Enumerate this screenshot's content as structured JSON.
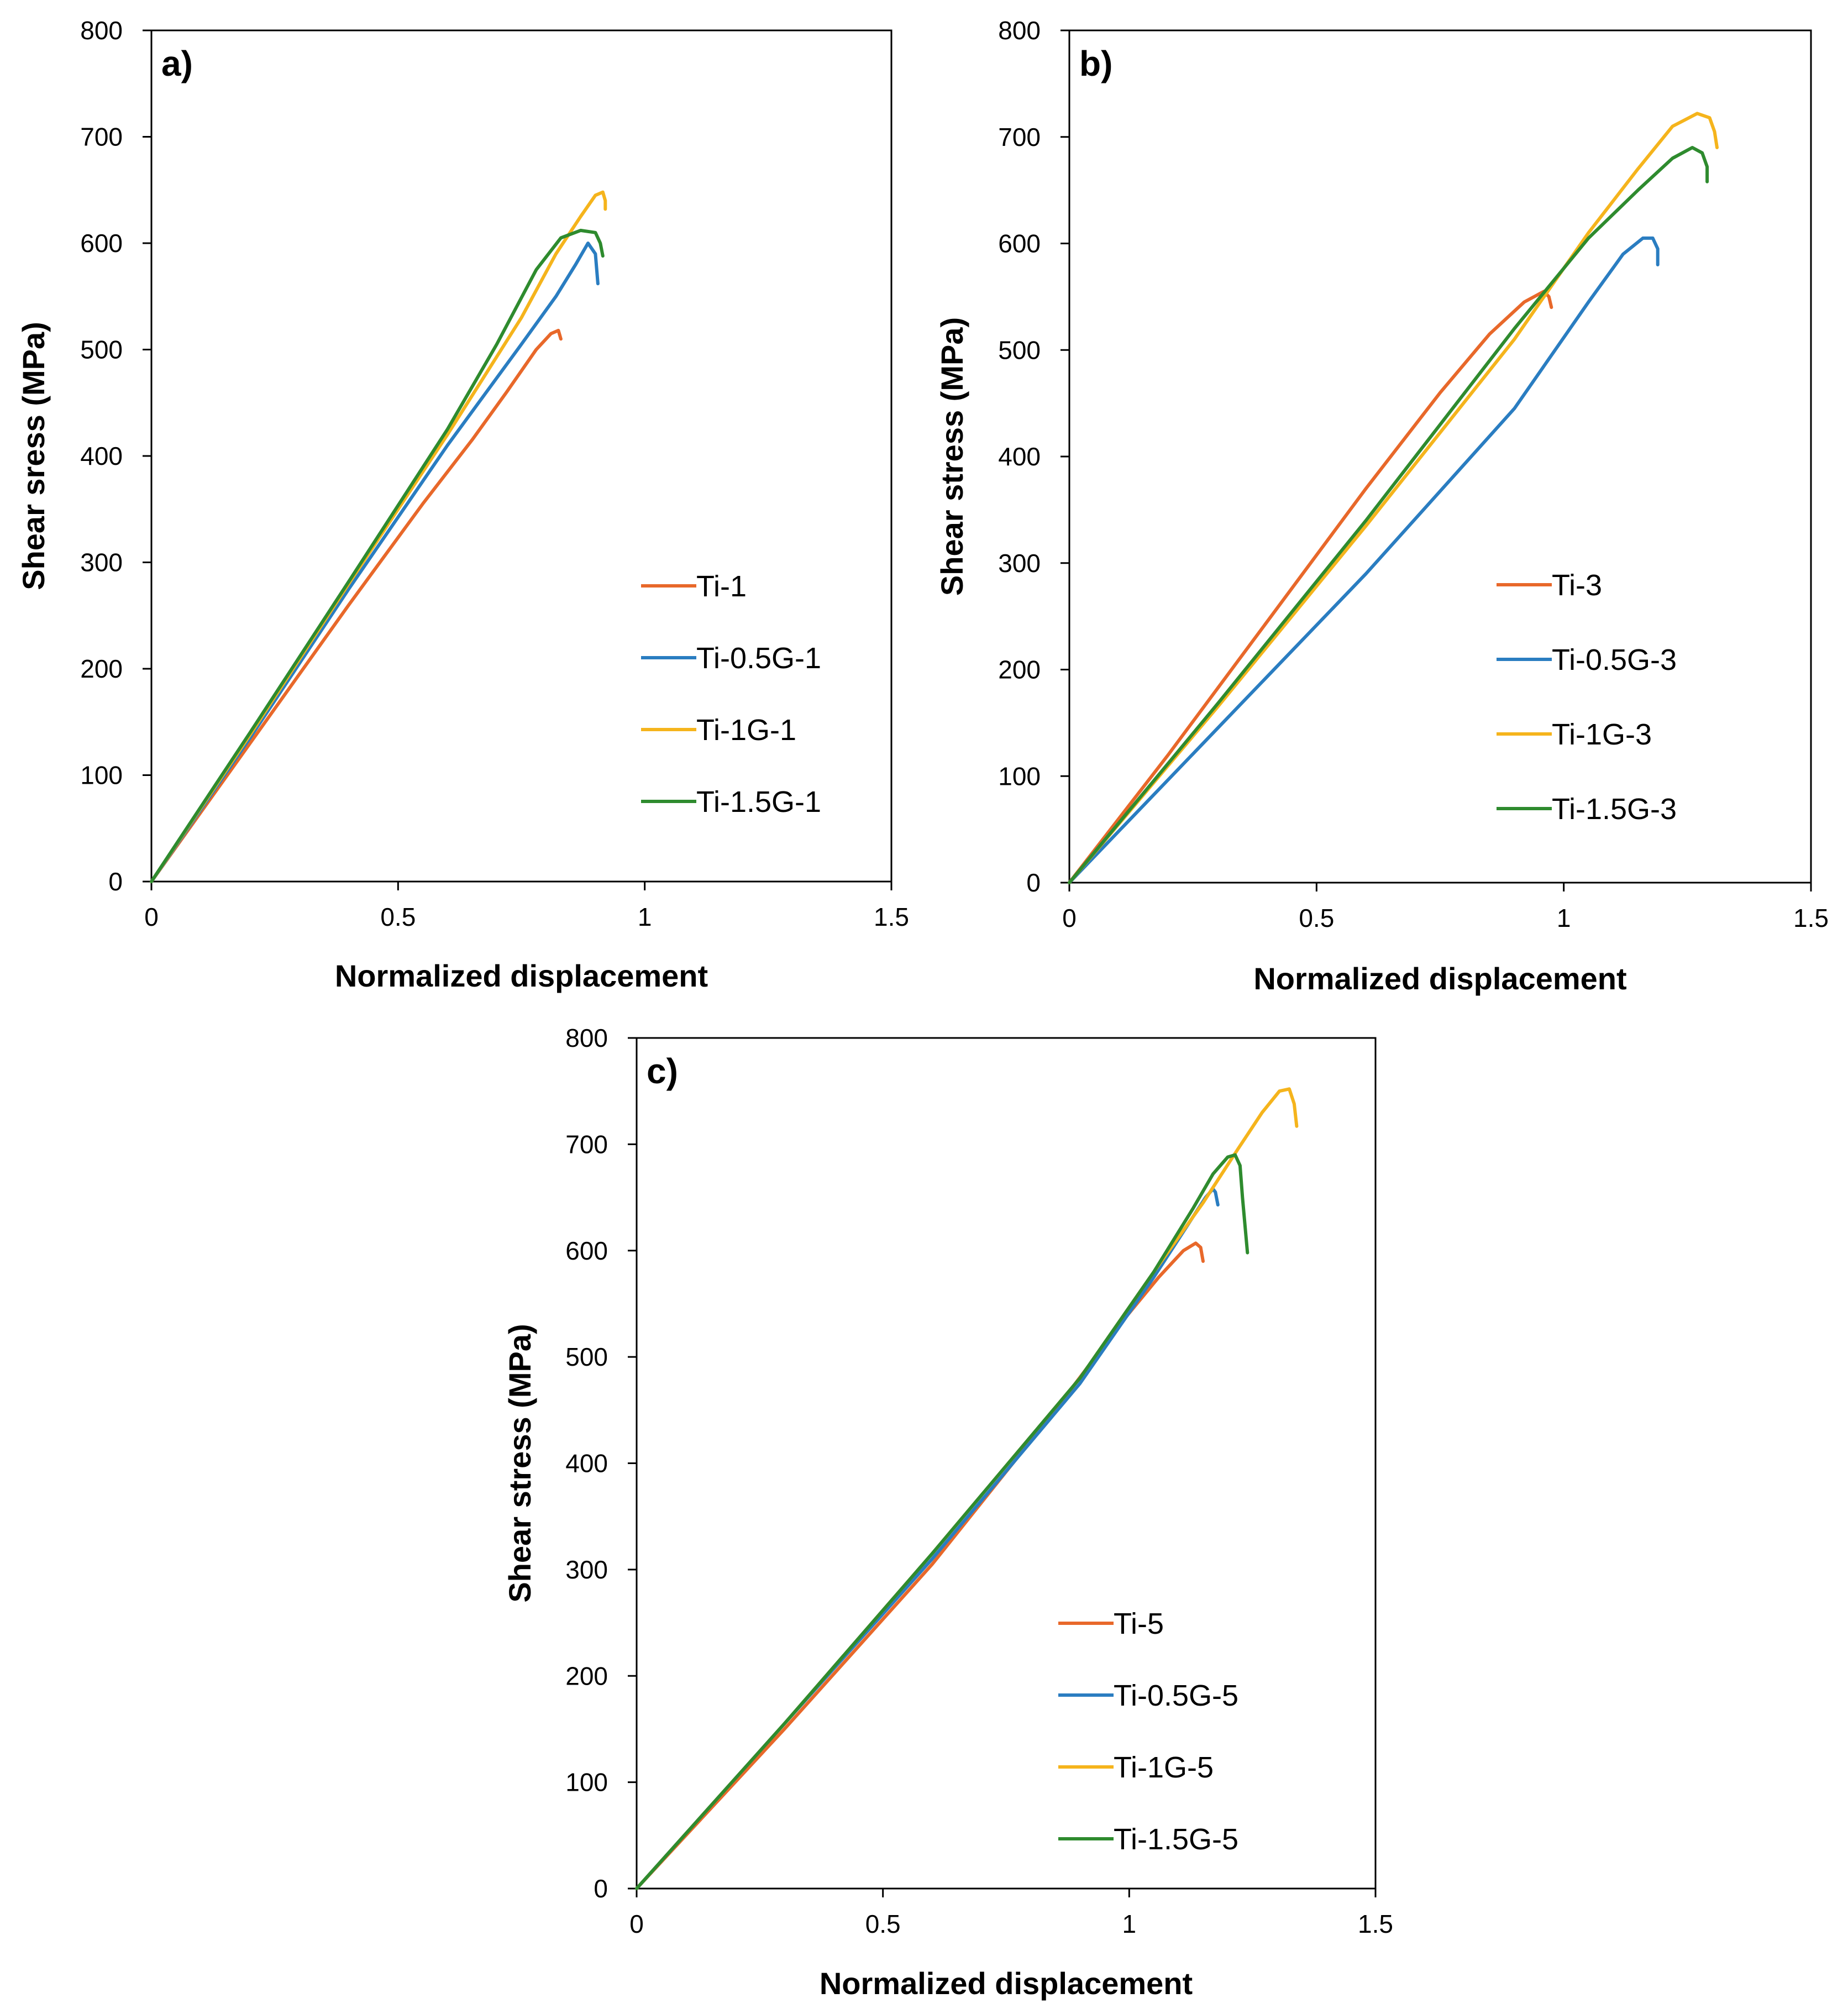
{
  "chart_data": [
    {
      "type": "line",
      "panel": "a)",
      "xlabel": "Normalized displacement",
      "ylabel": "Shear sress (MPa)",
      "xlim": [
        0,
        1.5
      ],
      "ylim": [
        0,
        800
      ],
      "xticks": [
        "0",
        "0.5",
        "1",
        "1.5"
      ],
      "yticks": [
        "0",
        "100",
        "200",
        "300",
        "400",
        "500",
        "600",
        "700",
        "800"
      ],
      "grid": false,
      "legend_position": "center-right",
      "series": [
        {
          "name": "Ti-1",
          "color": "#e8682a",
          "x": [
            0,
            0.2,
            0.4,
            0.55,
            0.65,
            0.72,
            0.78,
            0.81,
            0.825,
            0.83
          ],
          "y": [
            0,
            130,
            260,
            355,
            415,
            460,
            500,
            515,
            518,
            510
          ]
        },
        {
          "name": "Ti-0.5G-1",
          "color": "#2a7dc1",
          "x": [
            0,
            0.2,
            0.4,
            0.6,
            0.75,
            0.82,
            0.86,
            0.885,
            0.9,
            0.905
          ],
          "y": [
            0,
            135,
            275,
            410,
            505,
            550,
            580,
            600,
            590,
            562
          ]
        },
        {
          "name": "Ti-1G-1",
          "color": "#f5b41c",
          "x": [
            0,
            0.2,
            0.4,
            0.6,
            0.75,
            0.82,
            0.87,
            0.9,
            0.915,
            0.92,
            0.92
          ],
          "y": [
            0,
            138,
            280,
            420,
            530,
            590,
            625,
            645,
            648,
            640,
            632
          ]
        },
        {
          "name": "Ti-1.5G-1",
          "color": "#2e8b2e",
          "x": [
            0,
            0.2,
            0.4,
            0.6,
            0.7,
            0.78,
            0.83,
            0.87,
            0.9,
            0.91,
            0.915
          ],
          "y": [
            0,
            140,
            282,
            425,
            505,
            575,
            605,
            612,
            610,
            600,
            588
          ]
        }
      ]
    },
    {
      "type": "line",
      "panel": "b)",
      "xlabel": "Normalized displacement",
      "ylabel": "Shear stress (MPa)",
      "xlim": [
        0,
        1.5
      ],
      "ylim": [
        0,
        800
      ],
      "xticks": [
        "0",
        "0.5",
        "1",
        "1.5"
      ],
      "yticks": [
        "0",
        "100",
        "200",
        "300",
        "400",
        "500",
        "600",
        "700",
        "800"
      ],
      "grid": false,
      "legend_position": "center-right",
      "series": [
        {
          "name": "Ti-3",
          "color": "#e8682a",
          "x": [
            0,
            0.2,
            0.4,
            0.6,
            0.75,
            0.85,
            0.92,
            0.96,
            0.97,
            0.975
          ],
          "y": [
            0,
            120,
            245,
            370,
            460,
            515,
            545,
            555,
            550,
            540
          ]
        },
        {
          "name": "Ti-0.5G-3",
          "color": "#2a7dc1",
          "x": [
            0,
            0.3,
            0.6,
            0.9,
            1.05,
            1.12,
            1.16,
            1.18,
            1.19,
            1.19
          ],
          "y": [
            0,
            145,
            290,
            445,
            545,
            590,
            605,
            605,
            595,
            580
          ]
        },
        {
          "name": "Ti-1G-3",
          "color": "#f5b41c",
          "x": [
            0,
            0.3,
            0.6,
            0.9,
            1.05,
            1.15,
            1.22,
            1.27,
            1.295,
            1.305,
            1.31
          ],
          "y": [
            0,
            165,
            335,
            510,
            610,
            670,
            710,
            722,
            718,
            705,
            690
          ]
        },
        {
          "name": "Ti-1.5G-3",
          "color": "#2e8b2e",
          "x": [
            0,
            0.3,
            0.6,
            0.9,
            1.05,
            1.15,
            1.22,
            1.26,
            1.28,
            1.29,
            1.29
          ],
          "y": [
            0,
            168,
            340,
            520,
            605,
            650,
            680,
            690,
            685,
            672,
            658
          ]
        }
      ]
    },
    {
      "type": "line",
      "panel": "c)",
      "xlabel": "Normalized displacement",
      "ylabel": "Shear stress (MPa)",
      "xlim": [
        0,
        1.5
      ],
      "ylim": [
        0,
        800
      ],
      "xticks": [
        "0",
        "0.5",
        "1",
        "1.5"
      ],
      "yticks": [
        "0",
        "100",
        "200",
        "300",
        "400",
        "500",
        "600",
        "700",
        "800"
      ],
      "grid": false,
      "legend_position": "lower-center",
      "series": [
        {
          "name": "Ti-5",
          "color": "#e8682a",
          "x": [
            0,
            0.3,
            0.6,
            0.85,
            0.98,
            1.06,
            1.11,
            1.135,
            1.145,
            1.15
          ],
          "y": [
            0,
            150,
            305,
            450,
            530,
            575,
            600,
            607,
            603,
            590
          ]
        },
        {
          "name": "Ti-0.5G-5",
          "color": "#2a7dc1",
          "x": [
            0,
            0.3,
            0.6,
            0.9,
            1.05,
            1.12,
            1.155,
            1.17,
            1.175,
            1.18
          ],
          "y": [
            0,
            155,
            310,
            475,
            575,
            625,
            650,
            658,
            655,
            643
          ]
        },
        {
          "name": "Ti-1G-5",
          "color": "#f5b41c",
          "x": [
            0,
            0.3,
            0.6,
            0.9,
            1.05,
            1.15,
            1.22,
            1.27,
            1.305,
            1.325,
            1.335,
            1.34
          ],
          "y": [
            0,
            155,
            315,
            480,
            580,
            645,
            695,
            730,
            750,
            752,
            738,
            717
          ]
        },
        {
          "name": "Ti-1.5G-5",
          "color": "#2e8b2e",
          "x": [
            0,
            0.3,
            0.6,
            0.9,
            1.05,
            1.13,
            1.17,
            1.2,
            1.215,
            1.225,
            1.23,
            1.24
          ],
          "y": [
            0,
            155,
            315,
            480,
            580,
            640,
            672,
            688,
            690,
            680,
            650,
            598
          ]
        }
      ]
    }
  ]
}
